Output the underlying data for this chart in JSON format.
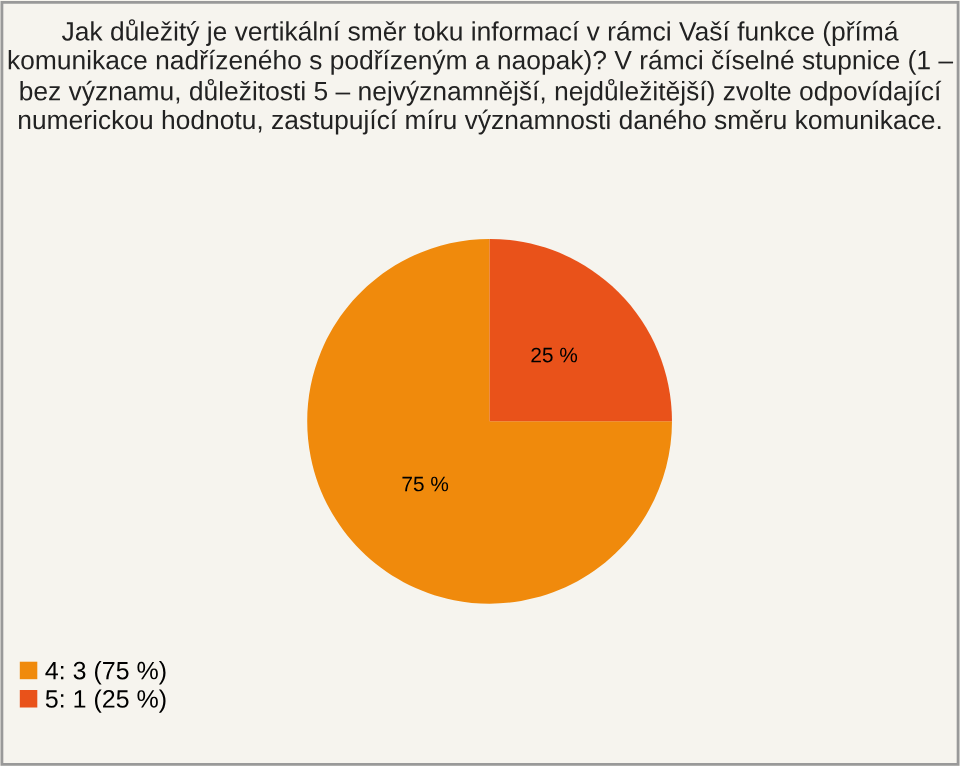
{
  "chart_data": {
    "type": "pie",
    "title": "Jak důležitý je vertikální směr toku informací v rámci Vaší funkce (přímá komunikace nadřízeného s podřízeným a naopak)? V rámci číselné stupnice (1 – bez významu, důležitosti 5 – nejvýznamnější, nejdůležitější) zvolte odpovídající numerickou hodnotu, zastupující míru významnosti daného směru komunikace.",
    "categories": [
      "4: 3 (75 %)",
      "5: 1 (25 %)"
    ],
    "values": [
      75,
      25
    ],
    "colors": [
      "#f08a0c",
      "#e9521a"
    ],
    "value_labels": [
      "75 %",
      "25 %"
    ],
    "legend": "bottom left"
  }
}
